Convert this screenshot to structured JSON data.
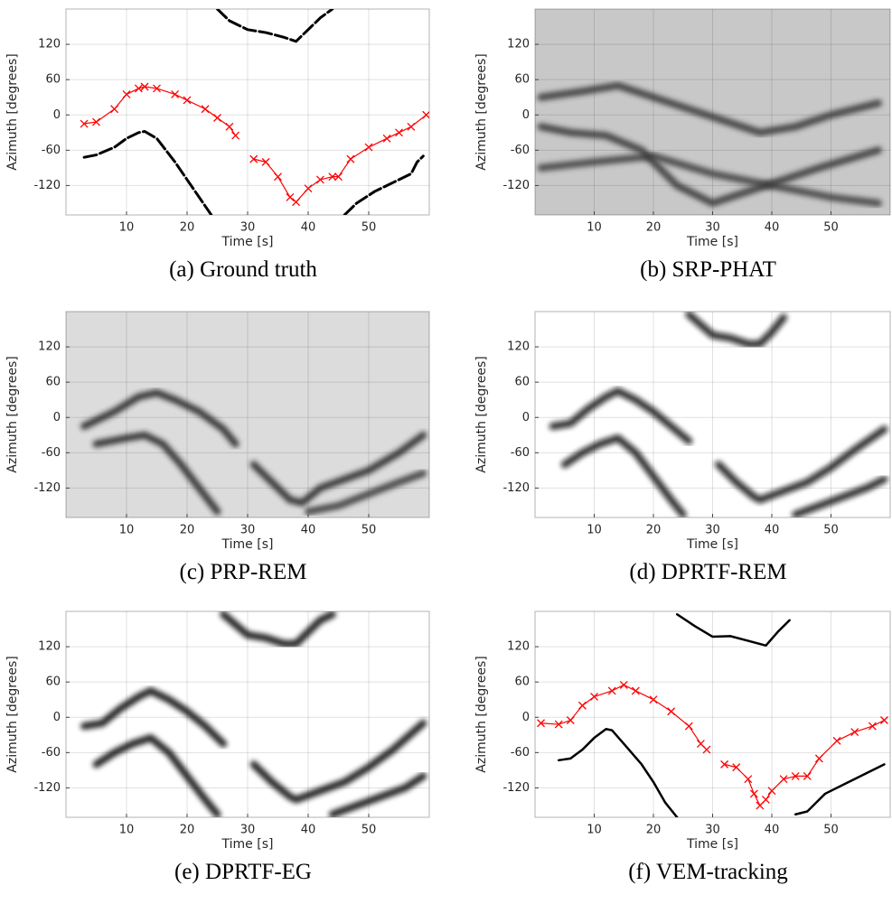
{
  "chart_data": [
    {
      "type": "track",
      "caption": "(a) Ground truth",
      "xlabel": "Time [s]",
      "ylabel": "Azimuth [degrees]",
      "xlim": [
        0,
        60
      ],
      "ylim": [
        -170,
        180
      ],
      "xticks": [
        10,
        20,
        30,
        40,
        50
      ],
      "yticks": [
        -120,
        -60,
        0,
        60,
        120
      ],
      "grid": true,
      "background": "#ffffff",
      "series": [
        {
          "color": "#ff0000",
          "style": "cross",
          "x": [
            3,
            5,
            8,
            10,
            12,
            13,
            15,
            18,
            20,
            23,
            25,
            27,
            28,
            null,
            31,
            33,
            35,
            37,
            38,
            40,
            42,
            44,
            45,
            47,
            50,
            53,
            55,
            57,
            59.5
          ],
          "values": [
            -15,
            -12,
            10,
            35,
            45,
            48,
            45,
            35,
            25,
            10,
            -5,
            -20,
            -35,
            null,
            -75,
            -80,
            -105,
            -140,
            -148,
            -125,
            -110,
            -105,
            -105,
            -75,
            -55,
            -40,
            -30,
            -20,
            0
          ]
        },
        {
          "color": "#000000",
          "style": "dash",
          "x": [
            3,
            5,
            8,
            10,
            12,
            13,
            15,
            18,
            20,
            22,
            24
          ],
          "values": [
            -72,
            -68,
            -55,
            -40,
            -30,
            -28,
            -40,
            -80,
            -110,
            -140,
            -170
          ]
        },
        {
          "color": "#000000",
          "style": "dash",
          "x": [
            25,
            27,
            30,
            33,
            36,
            38,
            40,
            42,
            44
          ],
          "values": [
            180,
            160,
            145,
            140,
            132,
            125,
            145,
            165,
            180
          ]
        },
        {
          "color": "#000000",
          "style": "dash",
          "x": [
            46,
            48,
            51,
            54,
            57,
            58,
            59
          ],
          "values": [
            -170,
            -150,
            -130,
            -115,
            -100,
            -80,
            -70
          ]
        }
      ]
    },
    {
      "type": "heatmap",
      "caption": "(b) SRP-PHAT",
      "xlabel": "Time [s]",
      "ylabel": "Azimuth [degrees]",
      "xlim": [
        0,
        60
      ],
      "ylim": [
        -170,
        180
      ],
      "xticks": [
        10,
        20,
        30,
        40,
        50
      ],
      "yticks": [
        -120,
        -60,
        0,
        60,
        120
      ],
      "grid": true,
      "background": "#c8c8c8",
      "series": [
        {
          "color": "#333333",
          "x": [
            1,
            8,
            14,
            20,
            26,
            32,
            38,
            44,
            50,
            58
          ],
          "values": [
            30,
            40,
            50,
            30,
            10,
            -10,
            -30,
            -20,
            0,
            20
          ]
        },
        {
          "color": "#333333",
          "x": [
            1,
            6,
            12,
            18,
            24,
            30,
            36,
            42,
            48,
            58
          ],
          "values": [
            -20,
            -30,
            -35,
            -60,
            -120,
            -150,
            -130,
            -110,
            -90,
            -60
          ]
        },
        {
          "color": "#3a3a3a",
          "x": [
            1,
            10,
            20,
            30,
            40,
            50,
            58
          ],
          "values": [
            -90,
            -80,
            -70,
            -100,
            -120,
            -140,
            -150
          ]
        }
      ]
    },
    {
      "type": "heatmap",
      "caption": "(c) PRP-REM",
      "xlabel": "Time [s]",
      "ylabel": "Azimuth [degrees]",
      "xlim": [
        0,
        60
      ],
      "ylim": [
        -170,
        180
      ],
      "xticks": [
        10,
        20,
        30,
        40,
        50
      ],
      "yticks": [
        -120,
        -60,
        0,
        60,
        120
      ],
      "grid": true,
      "background": "#dcdcdc",
      "series": [
        {
          "color": "#222222",
          "x": [
            3,
            8,
            12,
            15,
            18,
            22,
            26,
            28
          ],
          "values": [
            -15,
            10,
            35,
            42,
            30,
            10,
            -20,
            -45
          ]
        },
        {
          "color": "#222222",
          "x": [
            5,
            10,
            13,
            16,
            19,
            22,
            25
          ],
          "values": [
            -45,
            -35,
            -30,
            -45,
            -80,
            -120,
            -160
          ]
        },
        {
          "color": "#222222",
          "x": [
            31,
            34,
            37,
            39,
            42,
            46,
            50,
            55,
            59
          ],
          "values": [
            -80,
            -110,
            -140,
            -145,
            -120,
            -105,
            -90,
            -60,
            -30
          ]
        },
        {
          "color": "#333333",
          "x": [
            40,
            45,
            50,
            55,
            59
          ],
          "values": [
            -160,
            -150,
            -130,
            -110,
            -95
          ]
        }
      ]
    },
    {
      "type": "heatmap",
      "caption": "(d) DPRTF-REM",
      "xlabel": "Time [s]",
      "ylabel": "Azimuth [degrees]",
      "xlim": [
        0,
        60
      ],
      "ylim": [
        -170,
        180
      ],
      "xticks": [
        10,
        20,
        30,
        40,
        50
      ],
      "yticks": [
        -120,
        -60,
        0,
        60,
        120
      ],
      "grid": true,
      "background": "#ffffff",
      "series": [
        {
          "color": "#111111",
          "x": [
            3,
            6,
            9,
            12,
            14,
            17,
            20,
            23,
            26
          ],
          "values": [
            -15,
            -10,
            15,
            35,
            45,
            30,
            10,
            -15,
            -40
          ]
        },
        {
          "color": "#111111",
          "x": [
            5,
            8,
            11,
            14,
            17,
            20,
            23,
            25
          ],
          "values": [
            -80,
            -60,
            -45,
            -35,
            -60,
            -100,
            -140,
            -165
          ]
        },
        {
          "color": "#111111",
          "x": [
            26,
            30,
            33,
            36,
            38,
            40,
            42
          ],
          "values": [
            175,
            140,
            135,
            125,
            125,
            145,
            170
          ]
        },
        {
          "color": "#111111",
          "x": [
            31,
            34,
            37,
            38,
            42,
            46,
            50,
            54,
            59
          ],
          "values": [
            -80,
            -110,
            -135,
            -140,
            -125,
            -110,
            -85,
            -55,
            -20
          ]
        },
        {
          "color": "#111111",
          "x": [
            44,
            48,
            52,
            56,
            59
          ],
          "values": [
            -165,
            -150,
            -135,
            -120,
            -105
          ]
        }
      ]
    },
    {
      "type": "heatmap",
      "caption": "(e) DPRTF-EG",
      "xlabel": "Time [s]",
      "ylabel": "Azimuth [degrees]",
      "xlim": [
        0,
        60
      ],
      "ylim": [
        -170,
        180
      ],
      "xticks": [
        10,
        20,
        30,
        40,
        50
      ],
      "yticks": [
        -120,
        -60,
        0,
        60,
        120
      ],
      "grid": true,
      "background": "#ffffff",
      "series": [
        {
          "color": "#000000",
          "x": [
            3,
            6,
            9,
            12,
            14,
            17,
            20,
            23,
            26
          ],
          "values": [
            -15,
            -10,
            15,
            35,
            45,
            30,
            10,
            -15,
            -45
          ]
        },
        {
          "color": "#000000",
          "x": [
            5,
            8,
            11,
            14,
            17,
            20,
            23,
            25
          ],
          "values": [
            -80,
            -60,
            -45,
            -35,
            -60,
            -100,
            -140,
            -165
          ]
        },
        {
          "color": "#000000",
          "x": [
            26,
            30,
            33,
            36,
            38,
            40,
            42,
            44
          ],
          "values": [
            175,
            140,
            135,
            125,
            125,
            145,
            165,
            175
          ]
        },
        {
          "color": "#000000",
          "x": [
            31,
            34,
            37,
            38,
            42,
            46,
            50,
            54,
            59
          ],
          "values": [
            -80,
            -110,
            -135,
            -140,
            -125,
            -110,
            -85,
            -55,
            -10
          ]
        },
        {
          "color": "#000000",
          "x": [
            44,
            48,
            52,
            56,
            59
          ],
          "values": [
            -165,
            -150,
            -135,
            -120,
            -100
          ]
        }
      ]
    },
    {
      "type": "track",
      "caption": "(f) VEM-tracking",
      "xlabel": "Time [s]",
      "ylabel": "Azimuth [degrees]",
      "xlim": [
        0,
        60
      ],
      "ylim": [
        -170,
        180
      ],
      "xticks": [
        10,
        20,
        30,
        40,
        50
      ],
      "yticks": [
        -120,
        -60,
        0,
        60,
        120
      ],
      "grid": true,
      "background": "#ffffff",
      "series": [
        {
          "color": "#ff0000",
          "style": "cross",
          "x": [
            1,
            4,
            6,
            8,
            10,
            13,
            15,
            17,
            20,
            23,
            26,
            28,
            29,
            null,
            32,
            34,
            36,
            37,
            38,
            39,
            40,
            42,
            44,
            46,
            48,
            51,
            54,
            57,
            59
          ],
          "values": [
            -10,
            -12,
            -5,
            20,
            35,
            45,
            55,
            45,
            30,
            10,
            -15,
            -45,
            -55,
            null,
            -80,
            -85,
            -105,
            -130,
            -150,
            -140,
            -125,
            -105,
            -100,
            -100,
            -70,
            -40,
            -25,
            -15,
            -5
          ]
        },
        {
          "color": "#000000",
          "style": "solid",
          "x": [
            4,
            6,
            8,
            10,
            12,
            13,
            15,
            18,
            20,
            22,
            24
          ],
          "values": [
            -73,
            -70,
            -55,
            -35,
            -20,
            -22,
            -45,
            -80,
            -110,
            -145,
            -170
          ]
        },
        {
          "color": "#000000",
          "style": "solid",
          "x": [
            24,
            27,
            30,
            33,
            36,
            39,
            41,
            43
          ],
          "values": [
            175,
            155,
            137,
            138,
            130,
            122,
            145,
            165
          ]
        },
        {
          "color": "#000000",
          "style": "solid",
          "x": [
            44,
            46,
            49,
            52,
            55,
            59
          ],
          "values": [
            -165,
            -160,
            -130,
            -115,
            -100,
            -80
          ]
        }
      ]
    }
  ]
}
